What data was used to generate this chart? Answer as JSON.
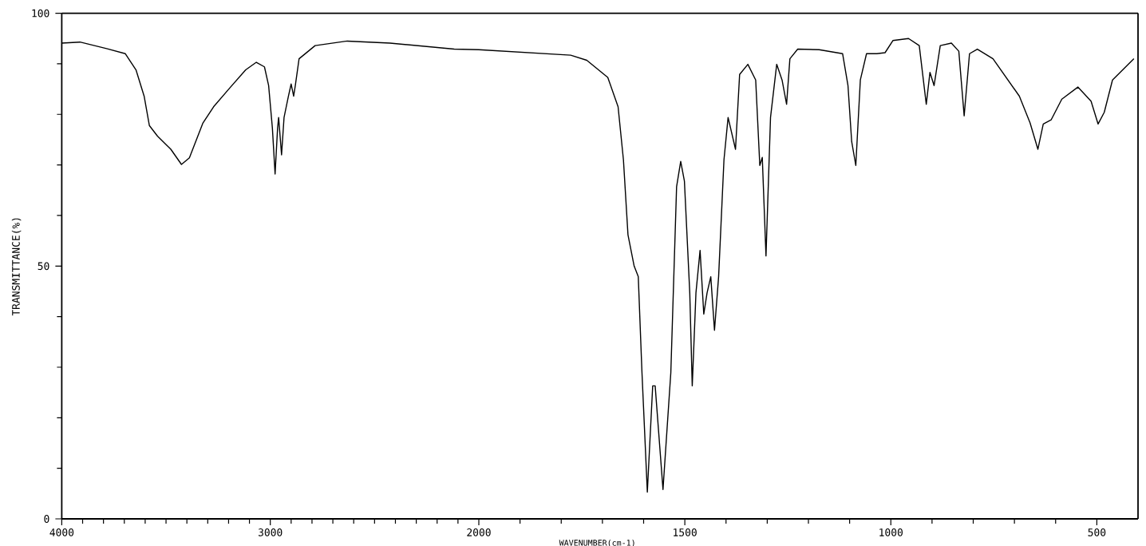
{
  "chart_data": [
    {
      "type": "line",
      "ylabel": "TRANSMITTANCE(%)",
      "xlim": [
        4000,
        2000
      ],
      "ylim": [
        0,
        100
      ],
      "xticks": [
        4000,
        {
          "value": 3900,
          "label": null
        },
        {
          "value": 3800,
          "label": null
        },
        {
          "value": 3700,
          "label": null
        },
        {
          "value": 3600,
          "label": null
        },
        {
          "value": 3500,
          "label": null
        },
        {
          "value": 3400,
          "label": null
        },
        {
          "value": 3300,
          "label": null
        },
        {
          "value": 3200,
          "label": null
        },
        {
          "value": 3100,
          "label": null
        },
        3000,
        {
          "value": 2900,
          "label": null
        },
        {
          "value": 2800,
          "label": null
        },
        {
          "value": 2700,
          "label": null
        },
        {
          "value": 2600,
          "label": null
        },
        {
          "value": 2500,
          "label": null
        },
        {
          "value": 2400,
          "label": null
        },
        {
          "value": 2300,
          "label": null
        },
        {
          "value": 2200,
          "label": null
        },
        {
          "value": 2100,
          "label": null
        },
        2000
      ],
      "yticks": [
        0,
        {
          "value": 10,
          "label": null
        },
        {
          "value": 20,
          "label": null
        },
        {
          "value": 30,
          "label": null
        },
        {
          "value": 40,
          "label": null
        },
        50,
        {
          "value": 60,
          "label": null
        },
        {
          "value": 70,
          "label": null
        },
        {
          "value": 80,
          "label": null
        },
        {
          "value": 90,
          "label": null
        },
        100
      ],
      "grid": false,
      "series": [
        {
          "color": "#000000",
          "x": [
            4000,
            3913,
            3785,
            3695,
            3644,
            3605,
            3580,
            3541,
            3477,
            3426,
            3388,
            3323,
            3272,
            3195,
            3118,
            3067,
            3028,
            3008,
            2990,
            2977,
            2965,
            2960,
            2946,
            2934,
            2913,
            2900,
            2888,
            2880,
            2862,
            2785,
            2631,
            2426,
            2118,
            2000
          ],
          "values": [
            94.1,
            94.3,
            93,
            92,
            88.8,
            83.6,
            77.8,
            75.7,
            73.1,
            70.1,
            71.4,
            78.3,
            81.5,
            85.2,
            88.8,
            90.3,
            89.4,
            85.7,
            77.3,
            68.2,
            77.3,
            79.4,
            72,
            79.4,
            83.6,
            86,
            83.6,
            85.7,
            91,
            93.6,
            94.5,
            94.1,
            92.9,
            92.8
          ]
        }
      ]
    },
    {
      "type": "line",
      "xlabel": "WAVENUMBER(cm-1)",
      "xlim": [
        2000,
        400
      ],
      "ylim": [
        0,
        100
      ],
      "xticks": [
        {
          "value": 1900,
          "label": null
        },
        {
          "value": 1800,
          "label": null
        },
        {
          "value": 1700,
          "label": null
        },
        {
          "value": 1600,
          "label": null
        },
        1500,
        {
          "value": 1400,
          "label": null
        },
        {
          "value": 1300,
          "label": null
        },
        {
          "value": 1200,
          "label": null
        },
        {
          "value": 1100,
          "label": null
        },
        1000,
        {
          "value": 900,
          "label": null
        },
        {
          "value": 800,
          "label": null
        },
        {
          "value": 700,
          "label": null
        },
        {
          "value": 600,
          "label": null
        },
        500
      ],
      "tick_labels": "x",
      "grid": false,
      "series": [
        {
          "color": "#000000",
          "x": [
            2000,
            1777,
            1738,
            1687,
            1662,
            1649,
            1638,
            1623,
            1613,
            1604,
            1591,
            1578,
            1572,
            1553,
            1534,
            1520,
            1510,
            1501,
            1488,
            1482,
            1473,
            1463,
            1454,
            1446,
            1437,
            1428,
            1418,
            1405,
            1395,
            1377,
            1367,
            1347,
            1328,
            1318,
            1312,
            1303,
            1292,
            1277,
            1264,
            1253,
            1245,
            1226,
            1174,
            1117,
            1104,
            1095,
            1085,
            1074,
            1059,
            1034,
            1014,
            995,
            957,
            931,
            914,
            905,
            895,
            880,
            853,
            835,
            822,
            809,
            790,
            752,
            688,
            662,
            643,
            630,
            611,
            585,
            546,
            514,
            497,
            482,
            462,
            410
          ],
          "values": [
            92.8,
            91.7,
            90.7,
            87.3,
            81.5,
            71,
            56.2,
            50,
            47.9,
            28.9,
            5.3,
            26.3,
            26.3,
            5.8,
            28.9,
            65.7,
            70.7,
            66.8,
            44.7,
            26.3,
            44.7,
            53.1,
            40.5,
            44.7,
            47.9,
            37.3,
            47.9,
            71,
            79.4,
            73.1,
            87.9,
            89.9,
            86.8,
            69.9,
            71.5,
            52,
            79.4,
            89.9,
            86.8,
            82,
            91,
            92.9,
            92.8,
            92,
            85.7,
            74.6,
            69.9,
            86.8,
            92,
            92,
            92.2,
            94.6,
            95,
            93.6,
            82,
            88.3,
            85.7,
            93.6,
            94.1,
            92.5,
            79.7,
            92,
            92.9,
            91,
            83.6,
            78.3,
            73.1,
            78.1,
            78.9,
            83,
            85.4,
            82.6,
            78.1,
            80.4,
            86.8,
            91
          ]
        }
      ]
    }
  ]
}
